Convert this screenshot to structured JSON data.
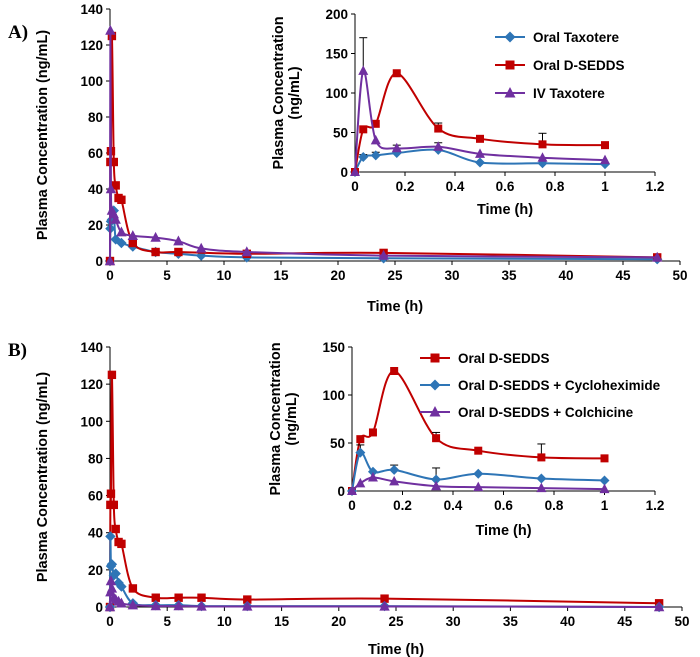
{
  "panels": {
    "a": {
      "label": "A)"
    },
    "b": {
      "label": "B)"
    }
  },
  "chart_data": [
    {
      "id": "A-main",
      "type": "line",
      "xlabel": "Time (h)",
      "ylabel": "Plasma Concentration (ng/mL)",
      "xlim": [
        0,
        50
      ],
      "ylim": [
        0,
        140
      ],
      "xticks": [
        0,
        5,
        10,
        15,
        20,
        25,
        30,
        35,
        40,
        45,
        50
      ],
      "yticks": [
        0,
        20,
        40,
        60,
        80,
        100,
        120,
        140
      ],
      "series": [
        {
          "name": "Oral Taxotere",
          "color": "#2E75B6",
          "marker": "diamond",
          "x": [
            0,
            0.033,
            0.083,
            0.167,
            0.333,
            0.5,
            1,
            2,
            4,
            6,
            8,
            12,
            24,
            48
          ],
          "y": [
            0,
            18,
            22,
            23,
            28,
            12,
            10,
            8,
            5,
            4,
            3,
            2,
            1.5,
            1
          ]
        },
        {
          "name": "Oral D-SEDDS",
          "color": "#C00000",
          "marker": "square",
          "x": [
            0,
            0.033,
            0.083,
            0.167,
            0.333,
            0.5,
            0.75,
            1,
            2,
            4,
            6,
            12,
            24,
            48
          ],
          "y": [
            0,
            55,
            61,
            125,
            55,
            42,
            35,
            34,
            10,
            5,
            5,
            4,
            4.5,
            2
          ]
        },
        {
          "name": "IV Taxotere",
          "color": "#7030A0",
          "marker": "triangle",
          "x": [
            0,
            0.033,
            0.083,
            0.167,
            0.333,
            0.5,
            1,
            2,
            4,
            6,
            8,
            12,
            24,
            48
          ],
          "y": [
            0,
            128,
            40,
            28,
            26,
            23,
            16,
            14,
            13,
            11,
            7,
            5,
            3,
            2
          ]
        }
      ],
      "inset": {
        "xlabel": "Time (h)",
        "ylabel": "Plasma Concentration (ng/mL)",
        "ylabel_lines": [
          "Plasma Concentration",
          "(ng/mL)"
        ],
        "xlim": [
          0,
          1.2
        ],
        "ylim": [
          0,
          200
        ],
        "xticks": [
          0,
          0.2,
          0.4,
          0.6,
          0.8,
          1,
          1.2
        ],
        "xtick_labels": [
          "0",
          "0.2",
          "0.4",
          "0.6",
          "0.8",
          "1",
          "1.2"
        ],
        "yticks": [
          0,
          50,
          100,
          150,
          200
        ],
        "legend": [
          "Oral Taxotere",
          "Oral D-SEDDS",
          "IV Taxotere"
        ],
        "series": [
          {
            "name": "Oral Taxotere",
            "color": "#2E75B6",
            "marker": "diamond",
            "x": [
              0,
              0.033,
              0.083,
              0.167,
              0.333,
              0.5,
              0.75,
              1
            ],
            "y": [
              0,
              19,
              21,
              24,
              28,
              12,
              11,
              10
            ],
            "err": [
              0,
              3,
              4,
              10,
              9,
              0,
              0,
              0
            ]
          },
          {
            "name": "Oral D-SEDDS",
            "color": "#C00000",
            "marker": "square",
            "x": [
              0,
              0.033,
              0.083,
              0.167,
              0.333,
              0.5,
              0.75,
              1
            ],
            "y": [
              0,
              54,
              61,
              125,
              55,
              42,
              35,
              34
            ],
            "err": [
              0,
              0,
              0,
              0,
              7,
              0,
              14,
              0
            ]
          },
          {
            "name": "IV Taxotere",
            "color": "#7030A0",
            "marker": "triangle",
            "x": [
              0,
              0.033,
              0.083,
              0.167,
              0.333,
              0.5,
              0.75,
              1
            ],
            "y": [
              0,
              128,
              40,
              30,
              32,
              23,
              18,
              15
            ],
            "err": [
              0,
              42,
              0,
              0,
              0,
              0,
              0,
              0
            ]
          }
        ]
      }
    },
    {
      "id": "B-main",
      "type": "line",
      "xlabel": "Time (h)",
      "ylabel": "Plasma Concentration (ng/mL)",
      "xlim": [
        0,
        50
      ],
      "ylim": [
        0,
        140
      ],
      "xticks": [
        0,
        5,
        10,
        15,
        20,
        25,
        30,
        35,
        40,
        45,
        50
      ],
      "yticks": [
        0,
        20,
        40,
        60,
        80,
        100,
        120,
        140
      ],
      "series": [
        {
          "name": "Oral D-SEDDS",
          "color": "#C00000",
          "marker": "square",
          "x": [
            0,
            0.033,
            0.083,
            0.167,
            0.333,
            0.5,
            0.75,
            1,
            2,
            4,
            6,
            8,
            12,
            24,
            48
          ],
          "y": [
            0,
            55,
            61,
            125,
            55,
            42,
            35,
            34,
            10,
            5,
            5,
            5,
            4,
            4.5,
            2
          ]
        },
        {
          "name": "Oral D-SEDDS + Cycloheximide",
          "color": "#2E75B6",
          "marker": "diamond",
          "x": [
            0,
            0.033,
            0.083,
            0.167,
            0.333,
            0.5,
            0.75,
            1,
            2,
            4,
            6,
            8,
            12,
            24,
            48
          ],
          "y": [
            0,
            38,
            22,
            23,
            17,
            18,
            13,
            11,
            2,
            1,
            1,
            0.5,
            0.5,
            0.5,
            0
          ]
        },
        {
          "name": "Oral D-SEDDS + Colchicine",
          "color": "#7030A0",
          "marker": "triangle",
          "x": [
            0,
            0.033,
            0.083,
            0.167,
            0.333,
            0.5,
            0.75,
            1,
            2,
            4,
            6,
            8,
            12,
            24,
            48
          ],
          "y": [
            0,
            8,
            14,
            10,
            5,
            4,
            3,
            2,
            1,
            0.5,
            0.5,
            0.3,
            0.3,
            0.3,
            0
          ]
        }
      ],
      "inset": {
        "xlabel": "Time (h)",
        "ylabel": "Plasma Concentration (ng/mL)",
        "ylabel_lines": [
          "Plasma Concentration",
          "(ng/mL)"
        ],
        "xlim": [
          0,
          1.2
        ],
        "ylim": [
          0,
          150
        ],
        "xticks": [
          0,
          0.2,
          0.4,
          0.6,
          0.8,
          1,
          1.2
        ],
        "xtick_labels": [
          "0",
          "0.2",
          "0.4",
          "0.6",
          "0.8",
          "1",
          "1.2"
        ],
        "yticks": [
          0,
          50,
          100,
          150
        ],
        "legend": [
          "Oral D-SEDDS",
          "Oral D-SEDDS + Cycloheximide",
          "Oral D-SEDDS + Colchicine"
        ],
        "series": [
          {
            "name": "Oral D-SEDDS",
            "color": "#C00000",
            "marker": "square",
            "x": [
              0,
              0.033,
              0.083,
              0.167,
              0.333,
              0.5,
              0.75,
              1
            ],
            "y": [
              0,
              54,
              61,
              125,
              55,
              42,
              35,
              34
            ],
            "err": [
              0,
              0,
              0,
              0,
              6,
              0,
              14,
              0
            ]
          },
          {
            "name": "Oral D-SEDDS + Cycloheximide",
            "color": "#2E75B6",
            "marker": "diamond",
            "x": [
              0,
              0.033,
              0.083,
              0.167,
              0.333,
              0.5,
              0.75,
              1
            ],
            "y": [
              0,
              40,
              20,
              22,
              12,
              18,
              13,
              11
            ],
            "err": [
              0,
              8,
              0,
              5,
              12,
              0,
              0,
              0
            ]
          },
          {
            "name": "Oral D-SEDDS + Colchicine",
            "color": "#7030A0",
            "marker": "triangle",
            "x": [
              0,
              0.033,
              0.083,
              0.167,
              0.333,
              0.5,
              0.75,
              1
            ],
            "y": [
              0,
              8,
              14,
              10,
              5,
              4,
              3,
              2
            ],
            "err": [
              0,
              0,
              0,
              0,
              0,
              0,
              0,
              0
            ]
          }
        ]
      }
    }
  ]
}
